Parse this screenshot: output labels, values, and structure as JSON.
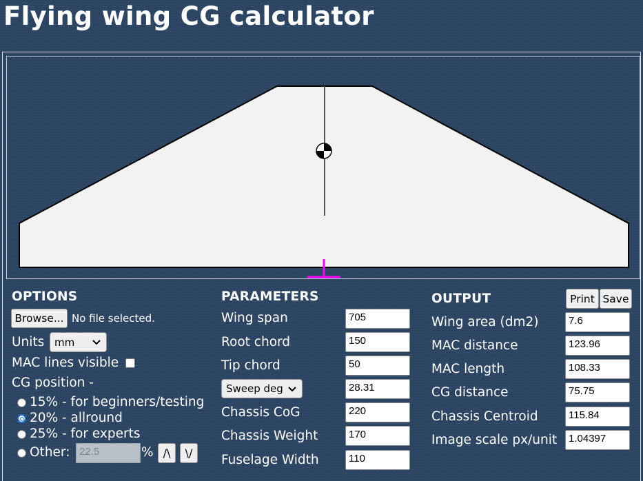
{
  "page": {
    "title": "Flying wing CG calculator"
  },
  "options": {
    "heading": "OPTIONS",
    "browse_label": "Browse...",
    "file_status": "No file selected.",
    "units_label": "Units",
    "units_value": "mm",
    "mac_lines_label": "MAC lines visible",
    "mac_lines_checked": false,
    "cg_position_label": "CG position -",
    "cg_options": [
      {
        "label": "15% - for beginners/testing",
        "checked": false
      },
      {
        "label": "20% - allround",
        "checked": true
      },
      {
        "label": "25% - for experts",
        "checked": false
      },
      {
        "label": "Other:",
        "checked": false
      }
    ],
    "other_value": "22.5",
    "percent_symbol": "%",
    "up_label": "/\\",
    "down_label": "\\/"
  },
  "parameters": {
    "heading": "PARAMETERS",
    "wing_span_label": "Wing span",
    "wing_span_value": "705",
    "root_chord_label": "Root chord",
    "root_chord_value": "150",
    "tip_chord_label": "Tip chord",
    "tip_chord_value": "50",
    "sweep_select_label": "Sweep deg",
    "sweep_value": "28.31",
    "chassis_cog_label": "Chassis CoG",
    "chassis_cog_value": "220",
    "chassis_weight_label": "Chassis Weight",
    "chassis_weight_value": "170",
    "fuselage_width_label": "Fuselage Width",
    "fuselage_width_value": "110"
  },
  "output": {
    "heading": "OUTPUT",
    "print_label": "Print",
    "save_label": "Save",
    "wing_area_label": "Wing area (dm2)",
    "wing_area_value": "7.6",
    "mac_distance_label": "MAC distance",
    "mac_distance_value": "123.96",
    "mac_length_label": "MAC length",
    "mac_length_value": "108.33",
    "cg_distance_label": "CG distance",
    "cg_distance_value": "75.75",
    "chassis_centroid_label": "Chassis Centroid",
    "chassis_centroid_value": "115.84",
    "image_scale_label": "Image scale px/unit",
    "image_scale_value": "1.04397"
  },
  "colors": {
    "background": "#2c4563",
    "wing_fill": "#f2f2f2",
    "centroid_marker": "#ff00ff"
  }
}
